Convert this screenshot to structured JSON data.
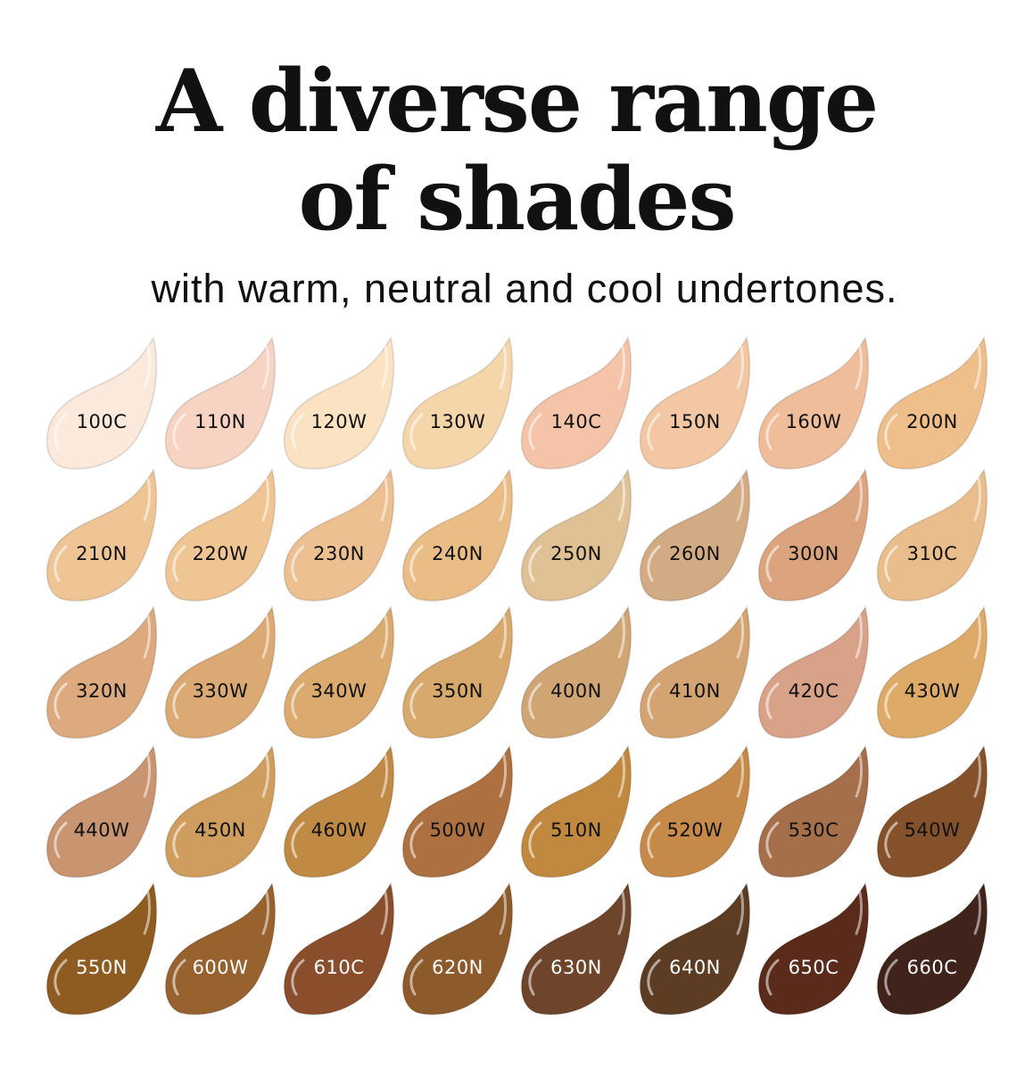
{
  "heading": {
    "line1": "A diverse range",
    "line2": "of shades"
  },
  "subheading": "with warm, neutral and cool undertones.",
  "swatches": [
    {
      "label": "100C",
      "color": "#fbe9dc",
      "text": "#111111"
    },
    {
      "label": "110N",
      "color": "#f6d3c3",
      "text": "#111111"
    },
    {
      "label": "120W",
      "color": "#fbe2c2",
      "text": "#111111"
    },
    {
      "label": "130W",
      "color": "#f5d6ab",
      "text": "#111111"
    },
    {
      "label": "140C",
      "color": "#f4c3a8",
      "text": "#111111"
    },
    {
      "label": "150N",
      "color": "#f3c7a3",
      "text": "#111111"
    },
    {
      "label": "160W",
      "color": "#f0bd9a",
      "text": "#111111"
    },
    {
      "label": "200N",
      "color": "#eebf8a",
      "text": "#111111"
    },
    {
      "label": "210N",
      "color": "#efc596",
      "text": "#111111"
    },
    {
      "label": "220W",
      "color": "#f0c594",
      "text": "#111111"
    },
    {
      "label": "230N",
      "color": "#ecc090",
      "text": "#111111"
    },
    {
      "label": "240N",
      "color": "#e9bd85",
      "text": "#111111"
    },
    {
      "label": "250N",
      "color": "#e0c095",
      "text": "#111111"
    },
    {
      "label": "260N",
      "color": "#d2ab85",
      "text": "#111111"
    },
    {
      "label": "300N",
      "color": "#dca47e",
      "text": "#111111"
    },
    {
      "label": "310C",
      "color": "#eabd8c",
      "text": "#111111"
    },
    {
      "label": "320N",
      "color": "#dcaa7e",
      "text": "#111111"
    },
    {
      "label": "330W",
      "color": "#dbaa74",
      "text": "#111111"
    },
    {
      "label": "340W",
      "color": "#daaa6e",
      "text": "#111111"
    },
    {
      "label": "350N",
      "color": "#d8a96c",
      "text": "#111111"
    },
    {
      "label": "400N",
      "color": "#d0a574",
      "text": "#111111"
    },
    {
      "label": "410N",
      "color": "#d3a472",
      "text": "#111111"
    },
    {
      "label": "420C",
      "color": "#d8a288",
      "text": "#111111"
    },
    {
      "label": "430W",
      "color": "#deaa67",
      "text": "#111111"
    },
    {
      "label": "440W",
      "color": "#c99470",
      "text": "#111111"
    },
    {
      "label": "450N",
      "color": "#cf9e5e",
      "text": "#111111"
    },
    {
      "label": "460W",
      "color": "#c08a45",
      "text": "#111111"
    },
    {
      "label": "500W",
      "color": "#ad7040",
      "text": "#111111"
    },
    {
      "label": "510N",
      "color": "#c0893f",
      "text": "#111111"
    },
    {
      "label": "520W",
      "color": "#c58949",
      "text": "#111111"
    },
    {
      "label": "530C",
      "color": "#a46f4a",
      "text": "#111111"
    },
    {
      "label": "540W",
      "color": "#85512a",
      "text": "#111111"
    },
    {
      "label": "550N",
      "color": "#8e5c21",
      "text": "#ffffff"
    },
    {
      "label": "600W",
      "color": "#98622f",
      "text": "#ffffff"
    },
    {
      "label": "610C",
      "color": "#8a4e2d",
      "text": "#ffffff"
    },
    {
      "label": "620N",
      "color": "#8d5a2c",
      "text": "#ffffff"
    },
    {
      "label": "630N",
      "color": "#6e452a",
      "text": "#ffffff"
    },
    {
      "label": "640N",
      "color": "#5c3d24",
      "text": "#ffffff"
    },
    {
      "label": "650C",
      "color": "#5a2a1a",
      "text": "#ffffff"
    },
    {
      "label": "660C",
      "color": "#40231a",
      "text": "#ffffff"
    }
  ]
}
